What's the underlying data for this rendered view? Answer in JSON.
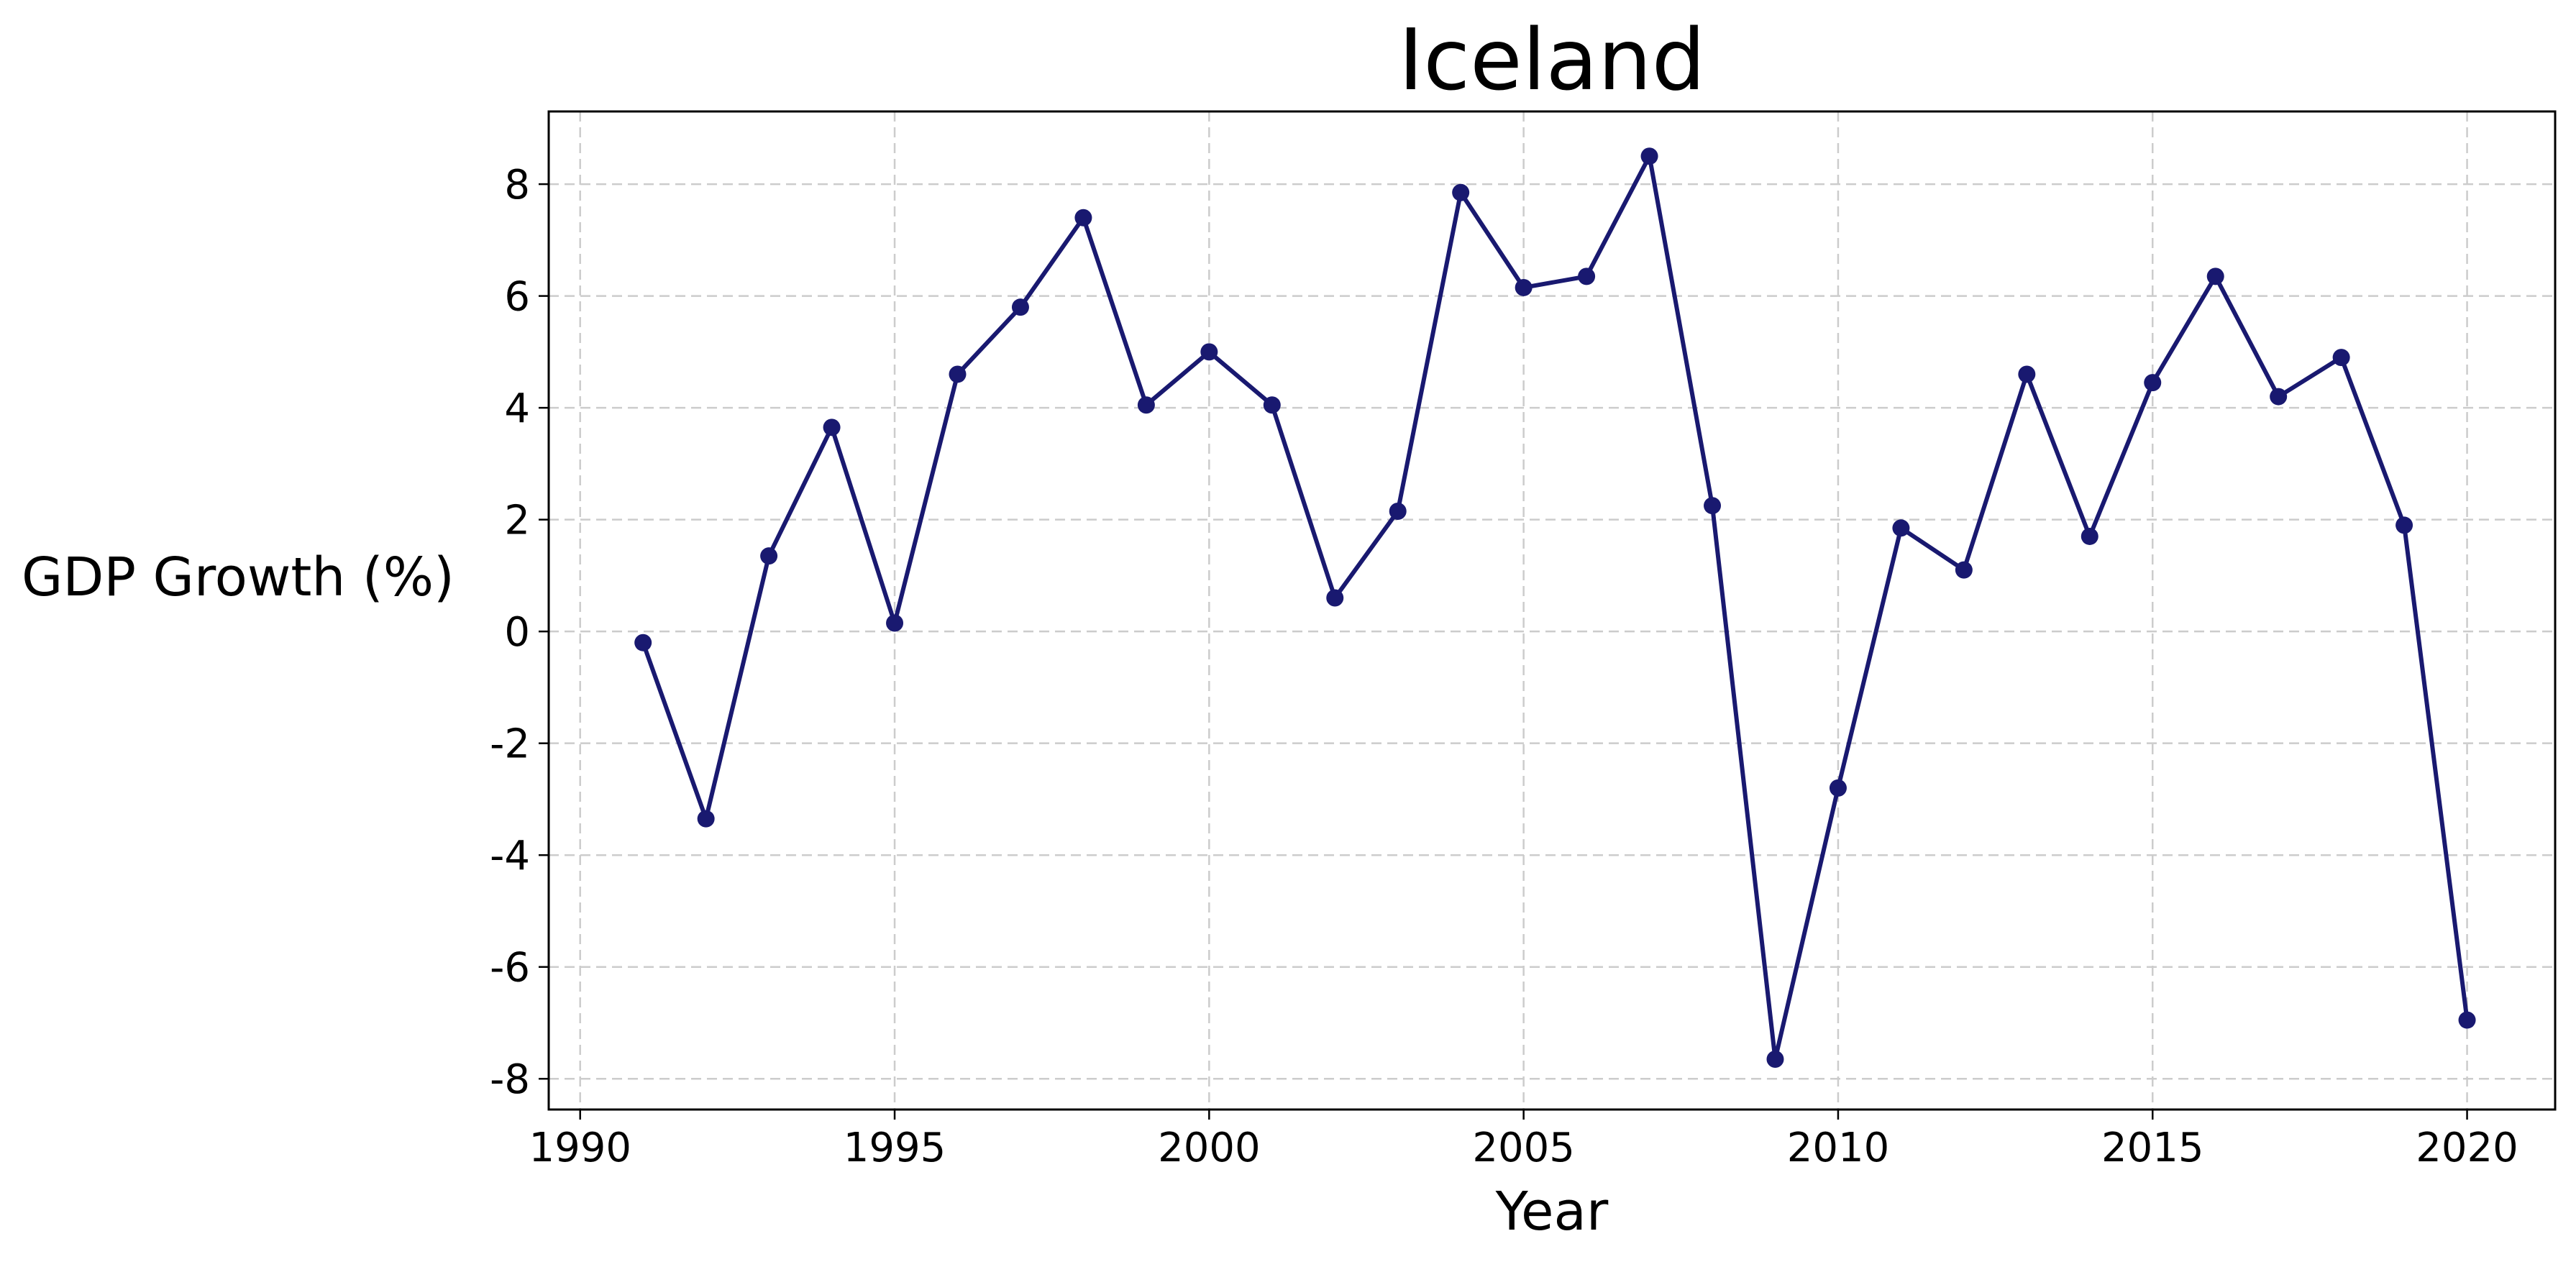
{
  "chart_data": {
    "type": "line",
    "title": "Iceland",
    "xlabel": "Year",
    "ylabel": "GDP Growth (%)",
    "xlim": [
      1989.5,
      2021.4
    ],
    "ylim": [
      -8.55,
      9.3
    ],
    "xticks": [
      1990,
      1995,
      2000,
      2005,
      2010,
      2015,
      2020
    ],
    "yticks": [
      -8,
      -6,
      -4,
      -2,
      0,
      2,
      4,
      6,
      8
    ],
    "grid": true,
    "color": "#191970",
    "x": [
      1991,
      1992,
      1993,
      1994,
      1995,
      1996,
      1997,
      1998,
      1999,
      2000,
      2001,
      2002,
      2003,
      2004,
      2005,
      2006,
      2007,
      2008,
      2009,
      2010,
      2011,
      2012,
      2013,
      2014,
      2015,
      2016,
      2017,
      2018,
      2019,
      2020
    ],
    "values": [
      -0.2,
      -3.35,
      1.35,
      3.65,
      0.15,
      4.6,
      5.8,
      7.4,
      4.05,
      5.0,
      4.05,
      0.6,
      2.15,
      7.85,
      6.15,
      6.35,
      8.5,
      2.25,
      -7.65,
      -2.8,
      1.85,
      1.1,
      4.6,
      1.7,
      4.45,
      6.35,
      4.2,
      4.9,
      1.9,
      -6.95
    ]
  }
}
